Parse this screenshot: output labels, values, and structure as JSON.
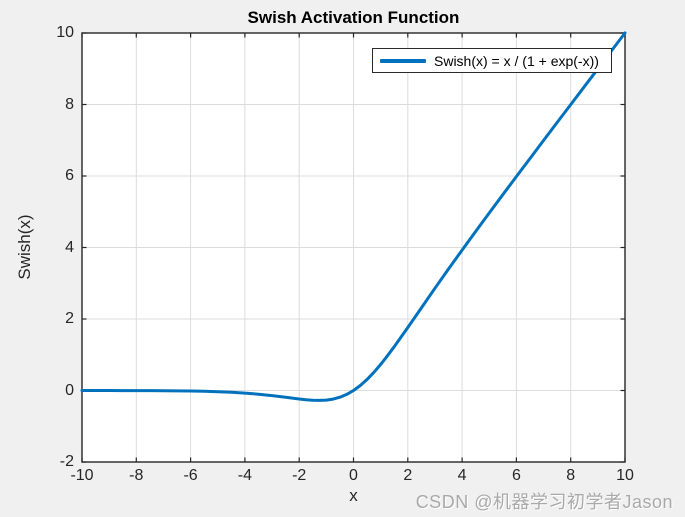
{
  "figure": {
    "background": "#f0f0f0",
    "plot_background": "#ffffff",
    "watermark": "CSDN @机器学习初学者Jason"
  },
  "colors": {
    "line": "#0072bd",
    "grid": "#dcdcdc",
    "axis": "#262626",
    "tick_label": "#262626",
    "watermark": "#a9a9a9"
  },
  "chart_data": {
    "type": "line",
    "title": "Swish Activation Function",
    "xlabel": "x",
    "ylabel": "Swish(x)",
    "xlim": [
      -10,
      10
    ],
    "ylim": [
      -2,
      10
    ],
    "xticks": [
      -10,
      -8,
      -6,
      -4,
      -2,
      0,
      2,
      4,
      6,
      8,
      10
    ],
    "yticks": [
      -2,
      0,
      2,
      4,
      6,
      8,
      10
    ],
    "grid": true,
    "legend": {
      "position": "top-right",
      "entries": [
        {
          "label": "Swish(x) = x / (1 + exp(-x))",
          "color": "#0072bd"
        }
      ]
    },
    "series": [
      {
        "name": "Swish(x) = x / (1 + exp(-x))",
        "color": "#0072bd",
        "line_width": 3,
        "x": [
          -10,
          -9.5,
          -9,
          -8.5,
          -8,
          -7.5,
          -7,
          -6.5,
          -6,
          -5.5,
          -5,
          -4.5,
          -4,
          -3.5,
          -3,
          -2.5,
          -2,
          -1.75,
          -1.5,
          -1.25,
          -1,
          -0.75,
          -0.5,
          -0.25,
          0,
          0.25,
          0.5,
          0.75,
          1,
          1.25,
          1.5,
          2,
          2.5,
          3,
          3.5,
          4,
          4.5,
          5,
          5.5,
          6,
          6.5,
          7,
          7.5,
          8,
          8.5,
          9,
          9.5,
          10
        ],
        "y": [
          -0.0005,
          -0.0007,
          -0.0011,
          -0.0017,
          -0.0027,
          -0.0041,
          -0.0064,
          -0.0098,
          -0.0148,
          -0.0224,
          -0.0335,
          -0.0494,
          -0.0719,
          -0.1026,
          -0.1423,
          -0.1897,
          -0.2384,
          -0.2591,
          -0.2736,
          -0.2783,
          -0.2689,
          -0.2406,
          -0.1888,
          -0.1094,
          0,
          0.1405,
          0.3112,
          0.5094,
          0.7311,
          0.9716,
          1.2264,
          1.7616,
          2.3104,
          2.8577,
          3.3974,
          3.9281,
          4.4506,
          4.9665,
          5.4776,
          5.9852,
          6.4902,
          6.9936,
          7.4959,
          7.9973,
          8.4983,
          8.9989,
          9.4993,
          9.9995
        ]
      }
    ]
  }
}
